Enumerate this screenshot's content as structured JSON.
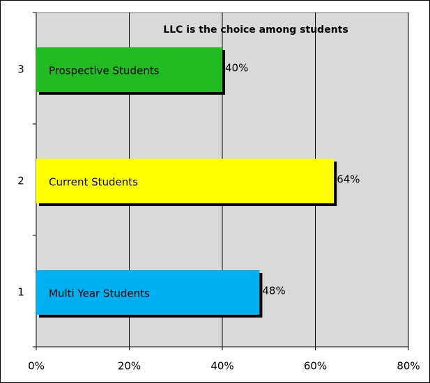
{
  "chart_data": {
    "type": "barh",
    "title": "LLC is the choice among students",
    "categories": [
      "1",
      "2",
      "3"
    ],
    "bar_labels": [
      "Multi Year Students",
      "Current Students",
      "Prospective Students"
    ],
    "values": [
      48,
      64,
      40
    ],
    "value_labels": [
      "48%",
      "64%",
      "40%"
    ],
    "colors": [
      "#00b0f0",
      "#ffff00",
      "#22bb22"
    ],
    "xlim": [
      0,
      80
    ],
    "xticks": [
      {
        "value": 0,
        "label": "0%"
      },
      {
        "value": 20,
        "label": "20%"
      },
      {
        "value": 40,
        "label": "40%"
      },
      {
        "value": 60,
        "label": "60%"
      },
      {
        "value": 80,
        "label": "80%"
      }
    ],
    "grid": true
  }
}
